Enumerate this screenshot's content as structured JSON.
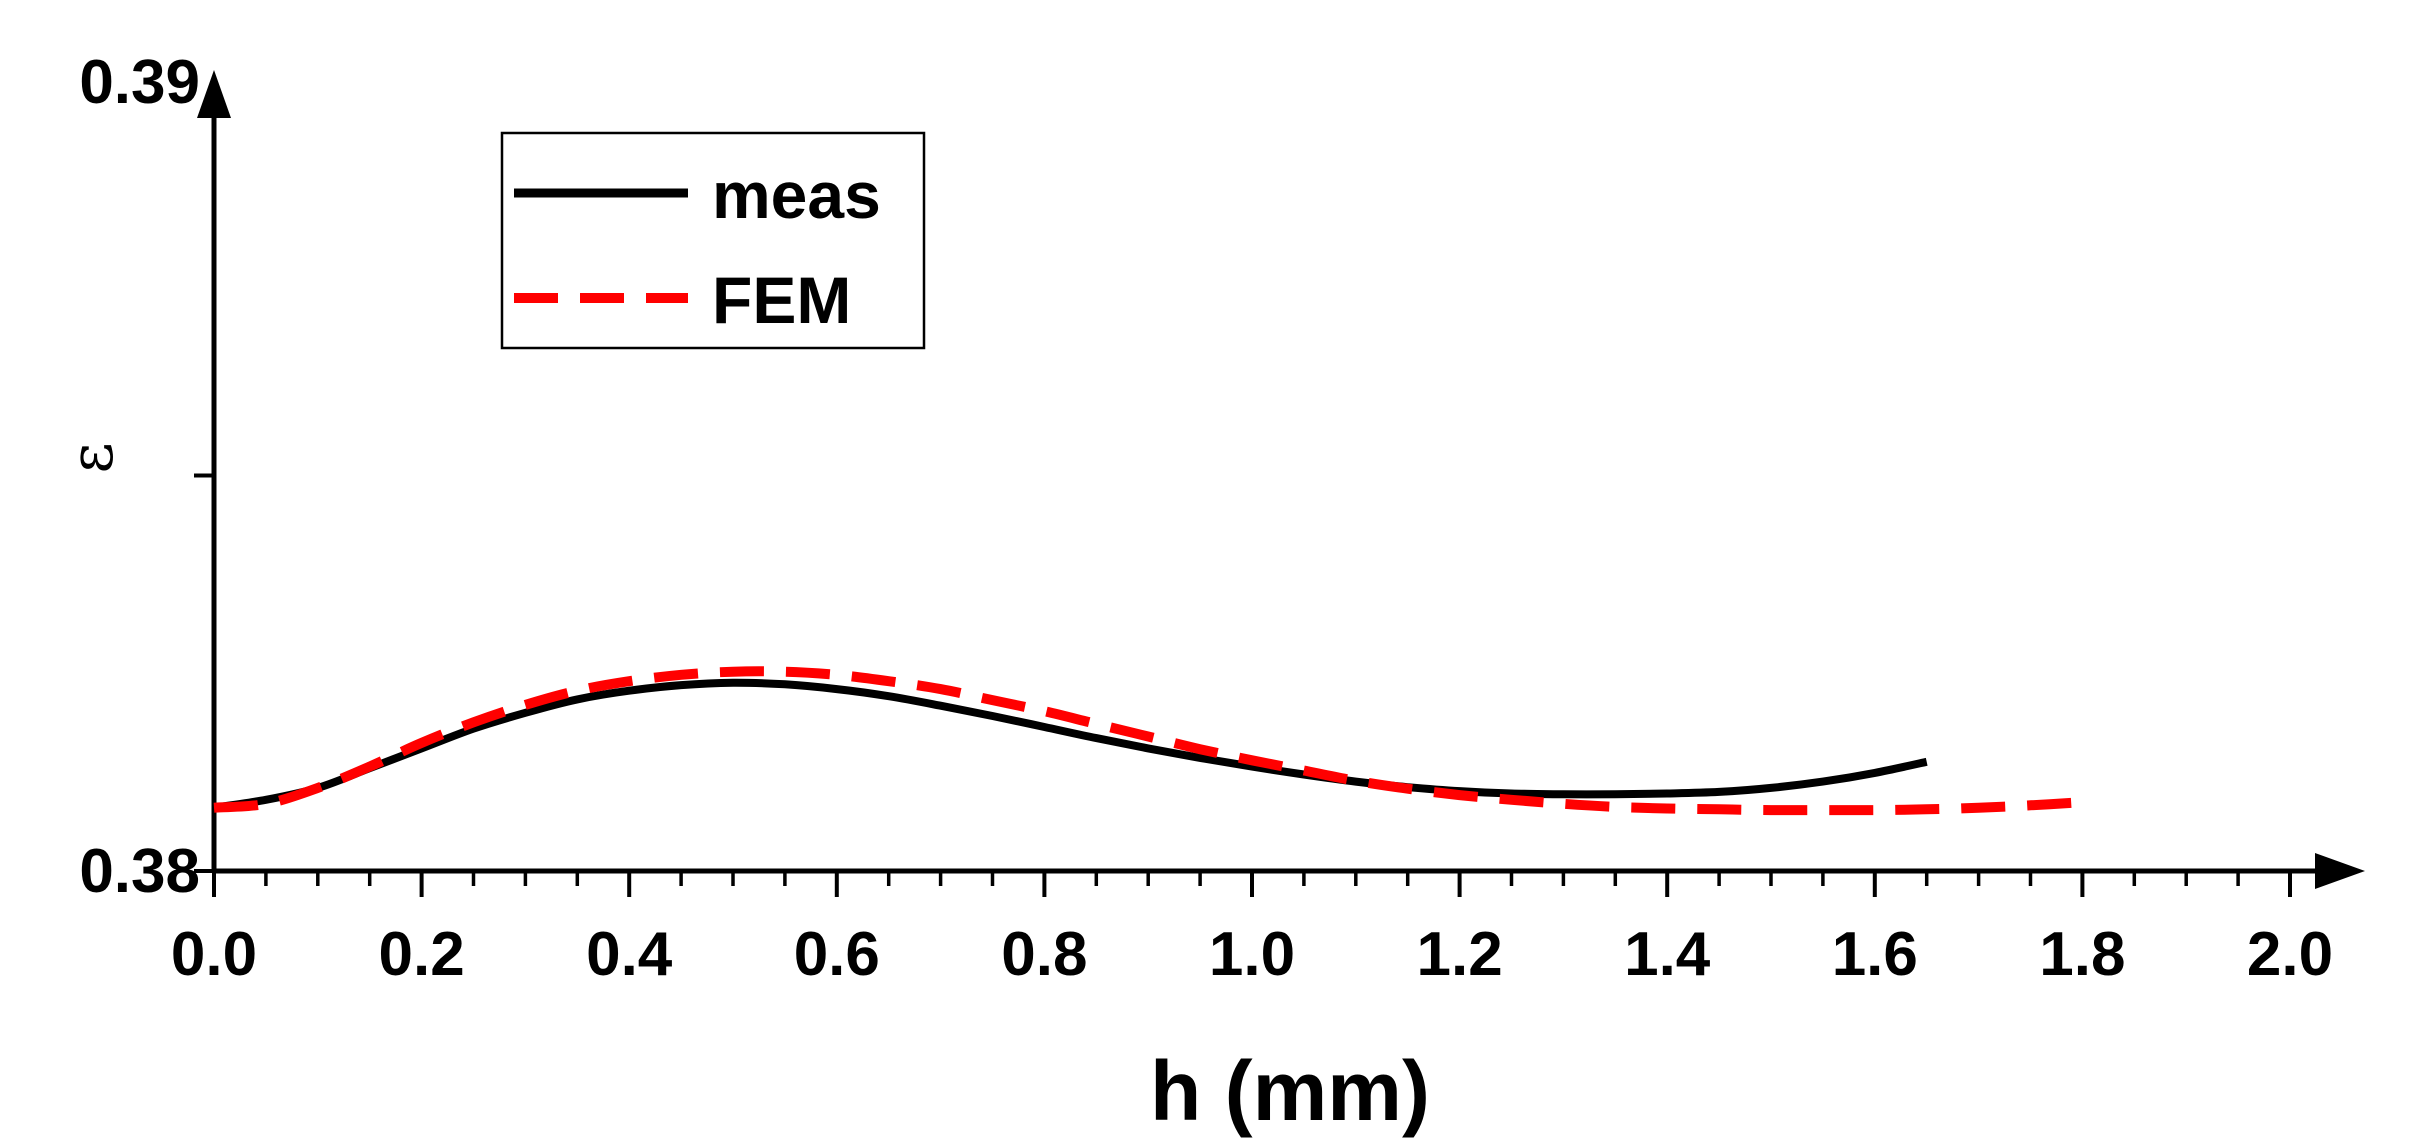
{
  "chart_data": {
    "type": "line",
    "title": "",
    "xlabel": "h (mm)",
    "ylabel": "ε",
    "xlim": [
      0.0,
      2.0
    ],
    "ylim": [
      0.38,
      0.39
    ],
    "x_ticks": [
      "0.0",
      "0.2",
      "0.4",
      "0.6",
      "0.8",
      "1.0",
      "1.2",
      "1.4",
      "1.6",
      "1.8",
      "2.0"
    ],
    "y_ticks": [
      "0.38",
      "0.39"
    ],
    "y_mid_tick": 0.385,
    "legend_position": "top-left",
    "series": [
      {
        "name": "meas",
        "color": "#000000",
        "style": "solid",
        "x": [
          0.0,
          0.05,
          0.1,
          0.15,
          0.2,
          0.25,
          0.3,
          0.35,
          0.4,
          0.45,
          0.5,
          0.55,
          0.6,
          0.65,
          0.7,
          0.75,
          0.8,
          0.85,
          0.9,
          0.95,
          1.0,
          1.05,
          1.1,
          1.15,
          1.2,
          1.25,
          1.3,
          1.35,
          1.4,
          1.45,
          1.5,
          1.55,
          1.6,
          1.65
        ],
        "y": [
          0.3808,
          0.3809,
          0.38105,
          0.3813,
          0.38155,
          0.3818,
          0.382,
          0.38217,
          0.38228,
          0.38235,
          0.38238,
          0.38236,
          0.3823,
          0.38221,
          0.38209,
          0.38196,
          0.38182,
          0.38168,
          0.38155,
          0.38143,
          0.38132,
          0.38122,
          0.38113,
          0.38106,
          0.38101,
          0.38098,
          0.38097,
          0.38097,
          0.38098,
          0.381,
          0.38105,
          0.38113,
          0.38124,
          0.38138
        ]
      },
      {
        "name": "FEM",
        "color": "#ff0000",
        "style": "dashed",
        "x": [
          0.0,
          0.05,
          0.1,
          0.15,
          0.2,
          0.25,
          0.3,
          0.35,
          0.4,
          0.45,
          0.5,
          0.55,
          0.6,
          0.65,
          0.7,
          0.75,
          0.8,
          0.85,
          0.9,
          0.95,
          1.0,
          1.05,
          1.1,
          1.15,
          1.2,
          1.25,
          1.3,
          1.35,
          1.4,
          1.45,
          1.5,
          1.55,
          1.6,
          1.65,
          1.7,
          1.75,
          1.8
        ],
        "y": [
          0.3808,
          0.38085,
          0.38105,
          0.38132,
          0.38162,
          0.38188,
          0.3821,
          0.38228,
          0.3824,
          0.38248,
          0.38252,
          0.38252,
          0.38248,
          0.3824,
          0.3823,
          0.38216,
          0.38202,
          0.38186,
          0.3817,
          0.38154,
          0.3814,
          0.38127,
          0.38114,
          0.38104,
          0.38096,
          0.3809,
          0.38085,
          0.38081,
          0.38079,
          0.38078,
          0.38077,
          0.38077,
          0.38077,
          0.38078,
          0.3808,
          0.38083,
          0.38087
        ]
      }
    ]
  }
}
